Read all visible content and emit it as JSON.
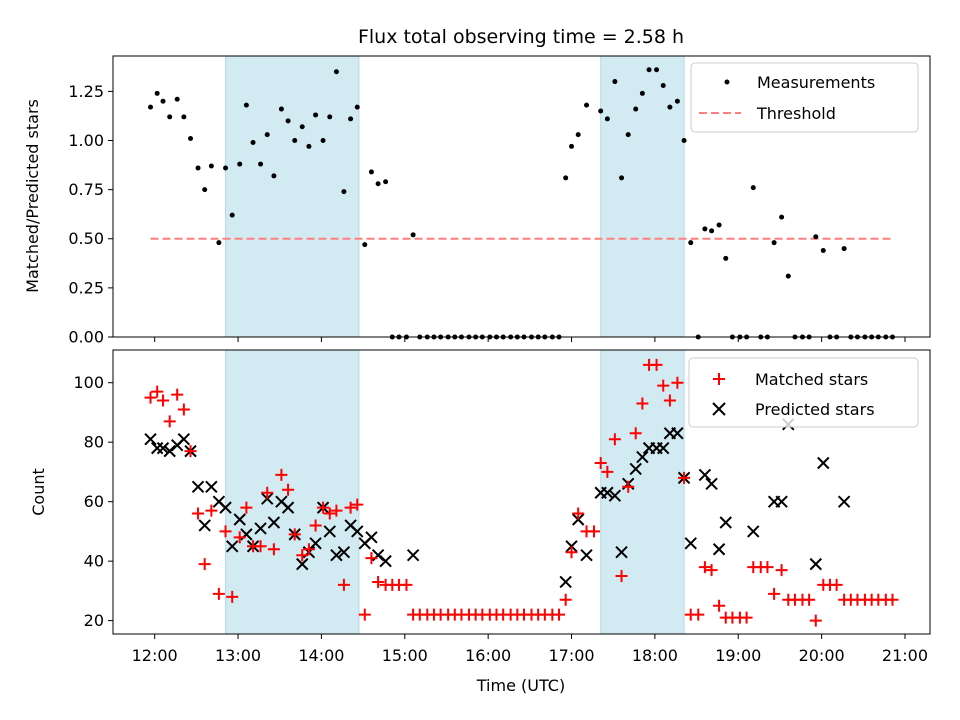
{
  "chart_data": {
    "type": "scatter",
    "title": "Flux total observing time = 2.58 h",
    "xlabel": "Time (UTC)",
    "x_ticks": [
      "12:00",
      "13:00",
      "14:00",
      "15:00",
      "16:00",
      "17:00",
      "18:00",
      "19:00",
      "20:00",
      "21:00"
    ],
    "x_tick_hours": [
      12,
      13,
      14,
      15,
      16,
      17,
      18,
      19,
      20,
      21
    ],
    "xlim": [
      11.5,
      21.3
    ],
    "shaded_intervals_hours": [
      [
        12.85,
        14.45
      ],
      [
        17.35,
        18.35
      ]
    ],
    "shade_color": "#add8e6",
    "top": {
      "ylabel": "Matched/Predicted stars",
      "ylim": [
        0.0,
        1.43
      ],
      "y_ticks": [
        "0.00",
        "0.25",
        "0.50",
        "0.75",
        "1.00",
        "1.25"
      ],
      "y_tick_values": [
        0,
        0.25,
        0.5,
        0.75,
        1.0,
        1.25
      ],
      "legend": [
        "Measurements",
        "Threshold"
      ],
      "threshold": {
        "value": 0.5,
        "x_start": 11.95,
        "x_end": 20.85,
        "color": "#ff7f7f"
      },
      "measurements": [
        [
          11.95,
          1.17
        ],
        [
          12.03,
          1.24
        ],
        [
          12.1,
          1.2
        ],
        [
          12.18,
          1.12
        ],
        [
          12.27,
          1.21
        ],
        [
          12.35,
          1.12
        ],
        [
          12.43,
          1.01
        ],
        [
          12.52,
          0.86
        ],
        [
          12.6,
          0.75
        ],
        [
          12.68,
          0.87
        ],
        [
          12.77,
          0.48
        ],
        [
          12.85,
          0.86
        ],
        [
          12.93,
          0.62
        ],
        [
          13.02,
          0.88
        ],
        [
          13.1,
          1.18
        ],
        [
          13.18,
          0.99
        ],
        [
          13.27,
          0.88
        ],
        [
          13.35,
          1.03
        ],
        [
          13.43,
          0.82
        ],
        [
          13.52,
          1.16
        ],
        [
          13.6,
          1.1
        ],
        [
          13.68,
          1.0
        ],
        [
          13.77,
          1.07
        ],
        [
          13.85,
          0.97
        ],
        [
          13.93,
          1.13
        ],
        [
          14.02,
          1.0
        ],
        [
          14.1,
          1.12
        ],
        [
          14.18,
          1.35
        ],
        [
          14.27,
          0.74
        ],
        [
          14.35,
          1.11
        ],
        [
          14.43,
          1.17
        ],
        [
          14.52,
          0.47
        ],
        [
          14.6,
          0.84
        ],
        [
          14.68,
          0.78
        ],
        [
          14.77,
          0.79
        ],
        [
          14.85,
          0
        ],
        [
          14.93,
          0
        ],
        [
          15.02,
          0
        ],
        [
          15.1,
          0.52
        ],
        [
          15.18,
          0
        ],
        [
          15.27,
          0
        ],
        [
          15.35,
          0
        ],
        [
          15.43,
          0
        ],
        [
          15.52,
          0
        ],
        [
          15.6,
          0
        ],
        [
          15.68,
          0
        ],
        [
          15.77,
          0
        ],
        [
          15.85,
          0
        ],
        [
          15.93,
          0
        ],
        [
          16.02,
          0
        ],
        [
          16.1,
          0
        ],
        [
          16.18,
          0
        ],
        [
          16.27,
          0
        ],
        [
          16.35,
          0
        ],
        [
          16.43,
          0
        ],
        [
          16.52,
          0
        ],
        [
          16.6,
          0
        ],
        [
          16.68,
          0
        ],
        [
          16.77,
          0
        ],
        [
          16.85,
          0
        ],
        [
          16.93,
          0.81
        ],
        [
          17.0,
          0.97
        ],
        [
          17.08,
          1.03
        ],
        [
          17.18,
          1.18
        ],
        [
          17.35,
          1.15
        ],
        [
          17.43,
          1.11
        ],
        [
          17.52,
          1.3
        ],
        [
          17.6,
          0.81
        ],
        [
          17.68,
          1.03
        ],
        [
          17.77,
          1.16
        ],
        [
          17.85,
          1.24
        ],
        [
          17.93,
          1.36
        ],
        [
          18.02,
          1.36
        ],
        [
          18.1,
          1.28
        ],
        [
          18.18,
          1.17
        ],
        [
          18.27,
          1.2
        ],
        [
          18.35,
          1.0
        ],
        [
          18.43,
          0.48
        ],
        [
          18.52,
          0
        ],
        [
          18.6,
          0.55
        ],
        [
          18.68,
          0.54
        ],
        [
          18.77,
          0.57
        ],
        [
          18.85,
          0.4
        ],
        [
          18.93,
          0
        ],
        [
          19.02,
          0
        ],
        [
          19.1,
          0
        ],
        [
          19.18,
          0.76
        ],
        [
          19.27,
          0
        ],
        [
          19.35,
          0
        ],
        [
          19.43,
          0.48
        ],
        [
          19.52,
          0.61
        ],
        [
          19.6,
          0.31
        ],
        [
          19.68,
          0
        ],
        [
          19.77,
          0
        ],
        [
          19.85,
          0
        ],
        [
          19.93,
          0.51
        ],
        [
          20.02,
          0.44
        ],
        [
          20.1,
          0
        ],
        [
          20.18,
          0
        ],
        [
          20.27,
          0.45
        ],
        [
          20.35,
          0
        ],
        [
          20.43,
          0
        ],
        [
          20.52,
          0
        ],
        [
          20.6,
          0
        ],
        [
          20.68,
          0
        ],
        [
          20.77,
          0
        ],
        [
          20.85,
          0
        ]
      ]
    },
    "bottom": {
      "ylabel": "Count",
      "ylim": [
        15.5,
        111
      ],
      "y_ticks": [
        "20",
        "40",
        "60",
        "80",
        "100"
      ],
      "y_tick_values": [
        20,
        40,
        60,
        80,
        100
      ],
      "legend": [
        "Matched stars",
        "Predicted stars"
      ],
      "matched_color": "#ff0000",
      "predicted_color": "#000000",
      "matched": [
        [
          11.95,
          95
        ],
        [
          12.03,
          97
        ],
        [
          12.1,
          94
        ],
        [
          12.18,
          87
        ],
        [
          12.27,
          96
        ],
        [
          12.35,
          91
        ],
        [
          12.43,
          77
        ],
        [
          12.52,
          56
        ],
        [
          12.6,
          39
        ],
        [
          12.68,
          57
        ],
        [
          12.77,
          29
        ],
        [
          12.85,
          50
        ],
        [
          12.93,
          28
        ],
        [
          13.02,
          48
        ],
        [
          13.1,
          58
        ],
        [
          13.18,
          45
        ],
        [
          13.27,
          45
        ],
        [
          13.35,
          63
        ],
        [
          13.43,
          44
        ],
        [
          13.52,
          69
        ],
        [
          13.6,
          64
        ],
        [
          13.68,
          49
        ],
        [
          13.77,
          42
        ],
        [
          13.85,
          44
        ],
        [
          13.93,
          52
        ],
        [
          14.02,
          58
        ],
        [
          14.1,
          56
        ],
        [
          14.18,
          57
        ],
        [
          14.27,
          32
        ],
        [
          14.35,
          58
        ],
        [
          14.43,
          59
        ],
        [
          14.52,
          22
        ],
        [
          14.6,
          41
        ],
        [
          14.68,
          33
        ],
        [
          14.77,
          32
        ],
        [
          14.85,
          32
        ],
        [
          14.93,
          32
        ],
        [
          15.02,
          32
        ],
        [
          15.1,
          22
        ],
        [
          15.18,
          22
        ],
        [
          15.27,
          22
        ],
        [
          15.35,
          22
        ],
        [
          15.43,
          22
        ],
        [
          15.52,
          22
        ],
        [
          15.6,
          22
        ],
        [
          15.68,
          22
        ],
        [
          15.77,
          22
        ],
        [
          15.85,
          22
        ],
        [
          15.93,
          22
        ],
        [
          16.02,
          22
        ],
        [
          16.1,
          22
        ],
        [
          16.18,
          22
        ],
        [
          16.27,
          22
        ],
        [
          16.35,
          22
        ],
        [
          16.43,
          22
        ],
        [
          16.52,
          22
        ],
        [
          16.6,
          22
        ],
        [
          16.68,
          22
        ],
        [
          16.77,
          22
        ],
        [
          16.85,
          22
        ],
        [
          16.93,
          27
        ],
        [
          17.0,
          43
        ],
        [
          17.08,
          56
        ],
        [
          17.18,
          50
        ],
        [
          17.27,
          50
        ],
        [
          17.35,
          73
        ],
        [
          17.43,
          70
        ],
        [
          17.52,
          81
        ],
        [
          17.6,
          35
        ],
        [
          17.68,
          65
        ],
        [
          17.77,
          83
        ],
        [
          17.85,
          93
        ],
        [
          17.93,
          106
        ],
        [
          18.02,
          106
        ],
        [
          18.1,
          99
        ],
        [
          18.18,
          94
        ],
        [
          18.27,
          100
        ],
        [
          18.35,
          68
        ],
        [
          18.43,
          22
        ],
        [
          18.52,
          22
        ],
        [
          18.6,
          38
        ],
        [
          18.68,
          37
        ],
        [
          18.77,
          25
        ],
        [
          18.85,
          21
        ],
        [
          18.93,
          21
        ],
        [
          19.02,
          21
        ],
        [
          19.1,
          21
        ],
        [
          19.18,
          38
        ],
        [
          19.27,
          38
        ],
        [
          19.35,
          38
        ],
        [
          19.43,
          29
        ],
        [
          19.52,
          37
        ],
        [
          19.6,
          27
        ],
        [
          19.68,
          27
        ],
        [
          19.77,
          27
        ],
        [
          19.85,
          27
        ],
        [
          19.93,
          20
        ],
        [
          20.02,
          32
        ],
        [
          20.1,
          32
        ],
        [
          20.18,
          32
        ],
        [
          20.27,
          27
        ],
        [
          20.35,
          27
        ],
        [
          20.43,
          27
        ],
        [
          20.52,
          27
        ],
        [
          20.6,
          27
        ],
        [
          20.68,
          27
        ],
        [
          20.77,
          27
        ],
        [
          20.85,
          27
        ]
      ],
      "predicted": [
        [
          11.95,
          81
        ],
        [
          12.03,
          78
        ],
        [
          12.1,
          78
        ],
        [
          12.18,
          77
        ],
        [
          12.27,
          79
        ],
        [
          12.35,
          81
        ],
        [
          12.43,
          77
        ],
        [
          12.52,
          65
        ],
        [
          12.6,
          52
        ],
        [
          12.68,
          65
        ],
        [
          12.77,
          60
        ],
        [
          12.85,
          58
        ],
        [
          12.93,
          45
        ],
        [
          13.02,
          54
        ],
        [
          13.1,
          49
        ],
        [
          13.18,
          45
        ],
        [
          13.27,
          51
        ],
        [
          13.35,
          61
        ],
        [
          13.43,
          53
        ],
        [
          13.52,
          60
        ],
        [
          13.6,
          58
        ],
        [
          13.68,
          49
        ],
        [
          13.77,
          39
        ],
        [
          13.85,
          43
        ],
        [
          13.93,
          46
        ],
        [
          14.02,
          58
        ],
        [
          14.1,
          50
        ],
        [
          14.18,
          42
        ],
        [
          14.27,
          43
        ],
        [
          14.35,
          52
        ],
        [
          14.43,
          50
        ],
        [
          14.52,
          46
        ],
        [
          14.6,
          48
        ],
        [
          14.68,
          42
        ],
        [
          14.77,
          40
        ],
        [
          15.1,
          42
        ],
        [
          16.93,
          33
        ],
        [
          17.0,
          45
        ],
        [
          17.08,
          54
        ],
        [
          17.18,
          42
        ],
        [
          17.35,
          63
        ],
        [
          17.43,
          63
        ],
        [
          17.52,
          62
        ],
        [
          17.6,
          43
        ],
        [
          17.68,
          66
        ],
        [
          17.77,
          71
        ],
        [
          17.85,
          75
        ],
        [
          17.93,
          78
        ],
        [
          18.02,
          78
        ],
        [
          18.1,
          78
        ],
        [
          18.18,
          83
        ],
        [
          18.27,
          83
        ],
        [
          18.35,
          68
        ],
        [
          18.43,
          46
        ],
        [
          18.6,
          69
        ],
        [
          18.68,
          66
        ],
        [
          18.77,
          44
        ],
        [
          18.85,
          53
        ],
        [
          19.18,
          50
        ],
        [
          19.43,
          60
        ],
        [
          19.52,
          60
        ],
        [
          19.6,
          86
        ],
        [
          19.93,
          39
        ],
        [
          20.02,
          73
        ],
        [
          20.27,
          60
        ]
      ]
    }
  }
}
